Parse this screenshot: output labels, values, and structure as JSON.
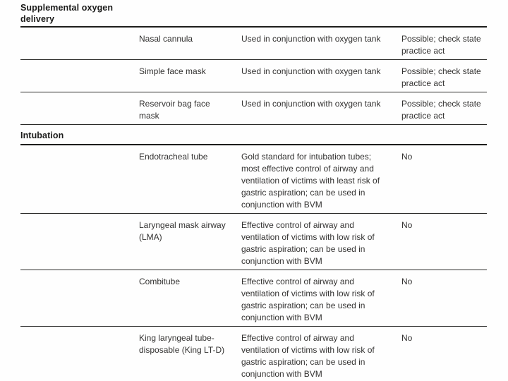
{
  "colors": {
    "accent_bar": "#1478be",
    "rule": "#2a2a28",
    "text": "#333231"
  },
  "table": {
    "sections": [
      {
        "label": "Supplemental oxygen delivery",
        "rows": [
          {
            "device": "Nasal cannula",
            "description": "Used in conjunction with oxygen tank",
            "note": "Possible; check state practice act"
          },
          {
            "device": "Simple face mask",
            "description": "Used in conjunction with oxygen tank",
            "note": "Possible; check state practice act"
          },
          {
            "device": "Reservoir bag face mask",
            "description": "Used in conjunction with oxygen tank",
            "note": "Possible; check state practice act"
          }
        ]
      },
      {
        "label": "Intubation",
        "rows": [
          {
            "device": "Endotracheal tube",
            "description": "Gold standard for intubation tubes; most effective control of airway and ventilation of victims with least risk of gastric aspiration; can be used in conjunction with BVM",
            "note": "No"
          },
          {
            "device": "Laryngeal mask airway (LMA)",
            "description": "Effective control of airway and ventilation of victims with low risk of gastric aspiration; can be used in conjunction with BVM",
            "note": "No"
          },
          {
            "device": "Combitube",
            "description": "Effective control of airway and ventilation of victims with low risk of gastric aspiration; can be used in conjunction with BVM",
            "note": "No"
          },
          {
            "device": "King laryngeal tube-disposable (King LT-D)",
            "description": "Effective control of airway and ventilation of victims with low risk of gastric aspiration; can be used in conjunction with BVM",
            "note": "No"
          }
        ]
      }
    ]
  }
}
